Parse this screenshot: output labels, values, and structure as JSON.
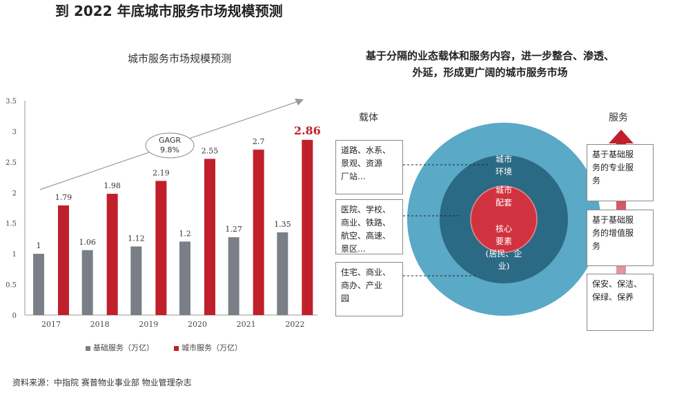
{
  "page_title": "到 2022 年底城市服务市场规模预测",
  "chart_title": "城市服务市场规模预测",
  "chart_data": {
    "type": "bar",
    "title": "城市服务市场规模预测",
    "categories": [
      "2017",
      "2018",
      "2019",
      "2020",
      "2021",
      "2022"
    ],
    "series": [
      {
        "name": "基础服务（万亿）",
        "values": [
          1,
          1.06,
          1.12,
          1.2,
          1.27,
          1.35
        ],
        "color": "#7a7f87"
      },
      {
        "name": "城市服务（万亿）",
        "values": [
          1.79,
          1.98,
          2.19,
          2.55,
          2.7,
          2.86
        ],
        "color": "#c0202b"
      }
    ],
    "value_labels": [
      [
        "1",
        "1.06",
        "1.12",
        "1.2",
        "1.27",
        "1.35"
      ],
      [
        "1.79",
        "1.98",
        "2.19",
        "2.55",
        "2.7",
        "2.86"
      ]
    ],
    "y_ticks": [
      "0",
      "0.5",
      "1",
      "1.5",
      "2",
      "2.5",
      "3",
      "3.5"
    ],
    "ylim": [
      0,
      3.5
    ],
    "highlight_value": "2.86",
    "annotation": {
      "line1": "GAGR",
      "line2": "9.8%"
    },
    "legend_position": "bottom"
  },
  "right_title": {
    "line1": "基于分隔的业态载体和服务内容，进一步整合、渗透、",
    "line2": "外延，形成更广阔的城市服务市场"
  },
  "carrier_label": "载体",
  "service_label": "服务",
  "carriers": [
    "道路、水系、\n景观、资源\n厂站…",
    "医院、学校、\n商业、铁路、\n航空、高速、\n景区…",
    "住宅、商业、\n商办、产业\n园"
  ],
  "rings": {
    "outer": "城市\n环境",
    "middle": "城市\n配套",
    "core": "核心\n要素\n(居民、企\n业)"
  },
  "services": [
    "基于基础服\n务的专业服\n务",
    "基于基础服\n务的增值服\n务",
    "保安、保洁、\n保绿、保养"
  ],
  "colors": {
    "outer_ring": "#5aa9c6",
    "middle_ring": "#2b6a84",
    "core": "#d1323f",
    "arrow_top": "#c0202b",
    "arrow_bottom": "#f2c4cb"
  },
  "source": "资料来源：中指院 赛普物业事业部 物业管理杂志"
}
